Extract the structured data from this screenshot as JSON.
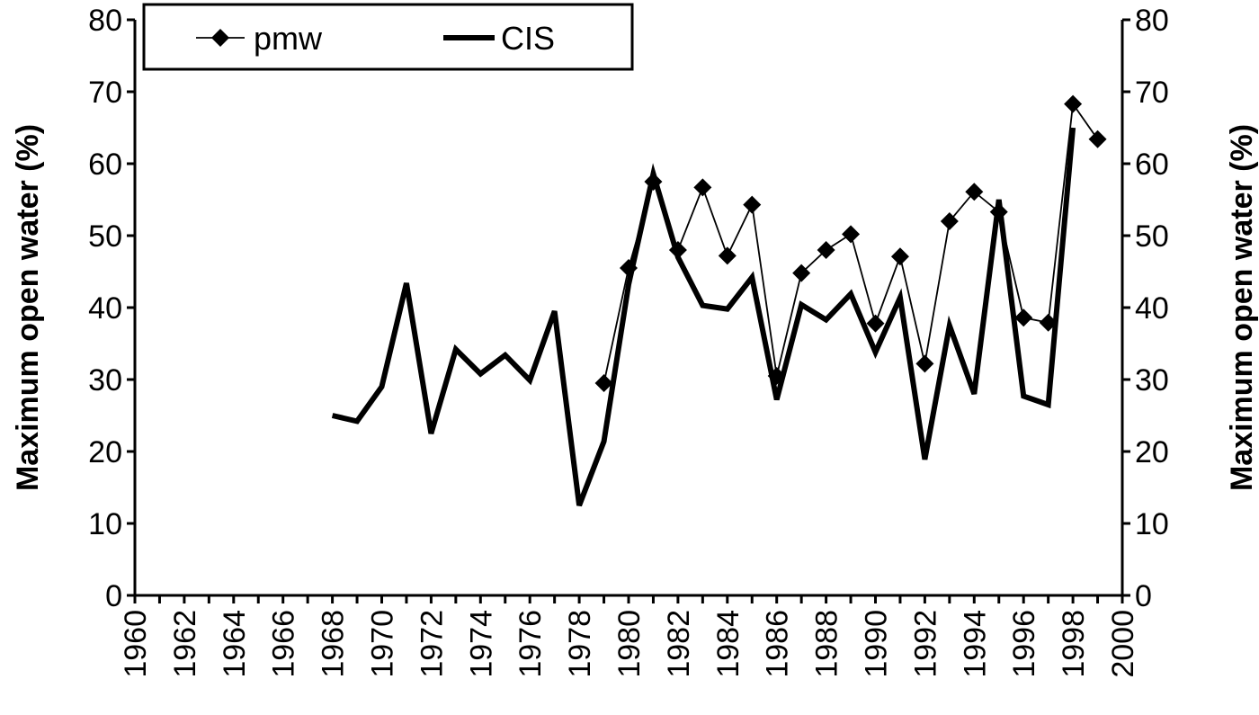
{
  "chart_data": {
    "type": "line",
    "title": "",
    "xlabel": "",
    "ylabel": "Maximum open water (%)",
    "ylabel_right": "Maximum open water (%)",
    "xlim": [
      1960,
      2000
    ],
    "ylim": [
      0,
      80
    ],
    "x_ticks": [
      "1960",
      "1962",
      "1964",
      "1966",
      "1968",
      "1970",
      "1972",
      "1974",
      "1976",
      "1978",
      "1980",
      "1982",
      "1984",
      "1986",
      "1988",
      "1990",
      "1992",
      "1994",
      "1996",
      "1998",
      "2000"
    ],
    "y_ticks": [
      "0",
      "10",
      "20",
      "30",
      "40",
      "50",
      "60",
      "70",
      "80"
    ],
    "grid": false,
    "legend_position": "top-left",
    "series": [
      {
        "name": "pmw",
        "color": "#000000",
        "marker": "diamond",
        "x": [
          1979,
          1980,
          1981,
          1982,
          1983,
          1984,
          1985,
          1986,
          1987,
          1988,
          1989,
          1990,
          1991,
          1992,
          1993,
          1994,
          1995,
          1996,
          1997,
          1998,
          1999
        ],
        "y": [
          29.5,
          45.5,
          57.5,
          48,
          56.7,
          47.2,
          54.3,
          30.5,
          44.8,
          48,
          50.2,
          37.8,
          47.1,
          32.2,
          52,
          56.1,
          53.3,
          38.6,
          37.9,
          68.3,
          63.4
        ]
      },
      {
        "name": "CIS",
        "color": "#000000",
        "marker": "none",
        "x": [
          1968,
          1969,
          1970,
          1971,
          1972,
          1973,
          1974,
          1975,
          1976,
          1977,
          1978,
          1979,
          1980,
          1981,
          1982,
          1983,
          1984,
          1985,
          1986,
          1987,
          1988,
          1989,
          1990,
          1991,
          1992,
          1993,
          1994,
          1995,
          1996,
          1997,
          1998
        ],
        "y": [
          25,
          24.2,
          29,
          43.4,
          22.5,
          34.2,
          30.8,
          33.4,
          29.9,
          39.5,
          12.5,
          21.4,
          43.2,
          58.6,
          47,
          40.3,
          39.8,
          44.2,
          27.2,
          40.4,
          38.3,
          41.9,
          33.8,
          41.4,
          18.9,
          37.5,
          28,
          55,
          27.7,
          26.5,
          65
        ]
      }
    ]
  }
}
